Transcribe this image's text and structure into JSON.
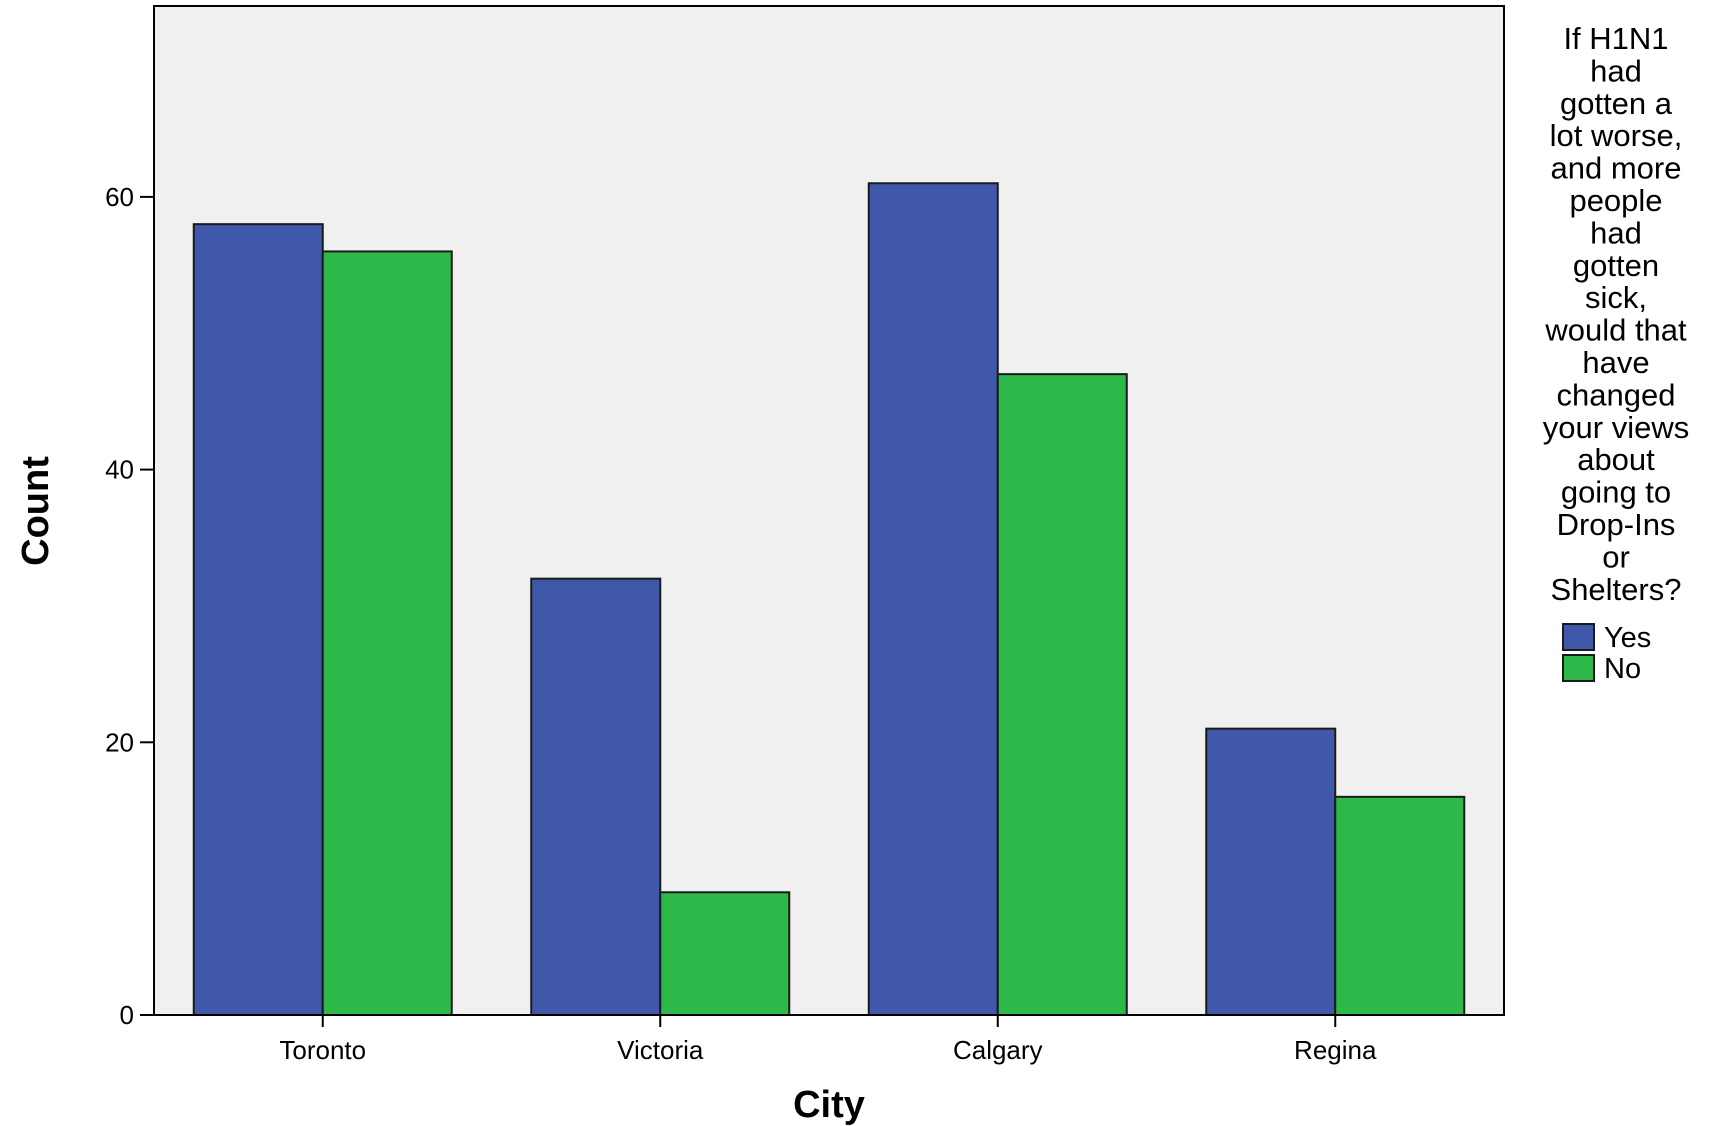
{
  "chart_data": {
    "type": "bar",
    "categories": [
      "Toronto",
      "Victoria",
      "Calgary",
      "Regina"
    ],
    "series": [
      {
        "name": "Yes",
        "color": "#3f58aa",
        "values": [
          58,
          32,
          61,
          21
        ]
      },
      {
        "name": "No",
        "color": "#2eb84a",
        "values": [
          56,
          9,
          47,
          16
        ]
      }
    ],
    "xlabel": "City",
    "ylabel": "Count",
    "ylim": [
      0,
      74
    ],
    "yticks": [
      0,
      20,
      40,
      60
    ],
    "grid": false,
    "plot_background": "#f0f0f0",
    "legend": {
      "placement": "right",
      "title_lines": [
        "If H1N1",
        "had",
        "gotten a",
        "lot worse,",
        "and more",
        "people",
        "had",
        "gotten",
        "sick,",
        "would that",
        "have",
        "changed",
        "your views",
        "about",
        "going to",
        "Drop-Ins",
        "or",
        "Shelters?"
      ]
    }
  }
}
